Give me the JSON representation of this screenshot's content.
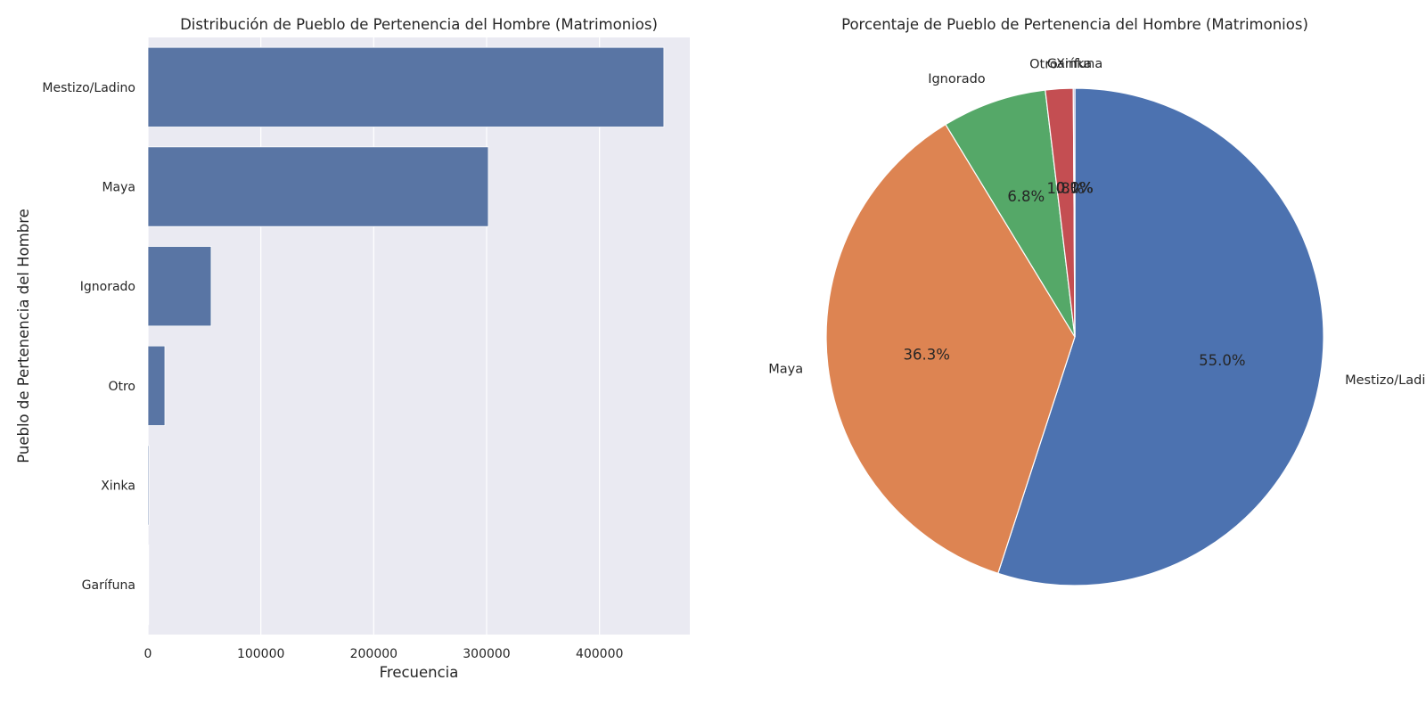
{
  "chart_data": [
    {
      "type": "bar",
      "orientation": "horizontal",
      "title": "Distribución de Pueblo de Pertenencia del Hombre (Matrimonios)",
      "xlabel": "Frecuencia",
      "ylabel": "Pueblo de Pertenencia del Hombre",
      "categories": [
        "Mestizo/Ladino",
        "Maya",
        "Ignorado",
        "Otro",
        "Xinka",
        "Garífuna"
      ],
      "values": [
        457000,
        301500,
        56000,
        15000,
        900,
        500
      ],
      "xlim": [
        0,
        480000
      ],
      "xticks": [
        0,
        100000,
        200000,
        300000,
        400000
      ],
      "xtick_labels": [
        "0",
        "100000",
        "200000",
        "300000",
        "400000"
      ],
      "grid": true,
      "bar_color": "#5975a4",
      "background": "#eaeaf2"
    },
    {
      "type": "pie",
      "title": "Porcentaje de Pueblo de Pertenencia del Hombre (Matrimonios)",
      "start_angle_deg": 90,
      "direction": "clockwise",
      "slices": [
        {
          "label": "Mestizo/Ladino",
          "value": 55.0,
          "pct_label": "55.0%",
          "color": "#4c72b0"
        },
        {
          "label": "Maya",
          "value": 36.3,
          "pct_label": "36.3%",
          "color": "#dd8452"
        },
        {
          "label": "Ignorado",
          "value": 6.8,
          "pct_label": "6.8%",
          "color": "#55a868"
        },
        {
          "label": "Otro",
          "value": 1.8,
          "pct_label": "1.8%",
          "color": "#c44e52"
        },
        {
          "label": "Xinka",
          "value": 0.1,
          "pct_label": "0.1%",
          "color": "#8172b3"
        },
        {
          "label": "Garífuna",
          "value": 0.0,
          "pct_label": "0.0%",
          "color": "#937860"
        }
      ]
    }
  ]
}
